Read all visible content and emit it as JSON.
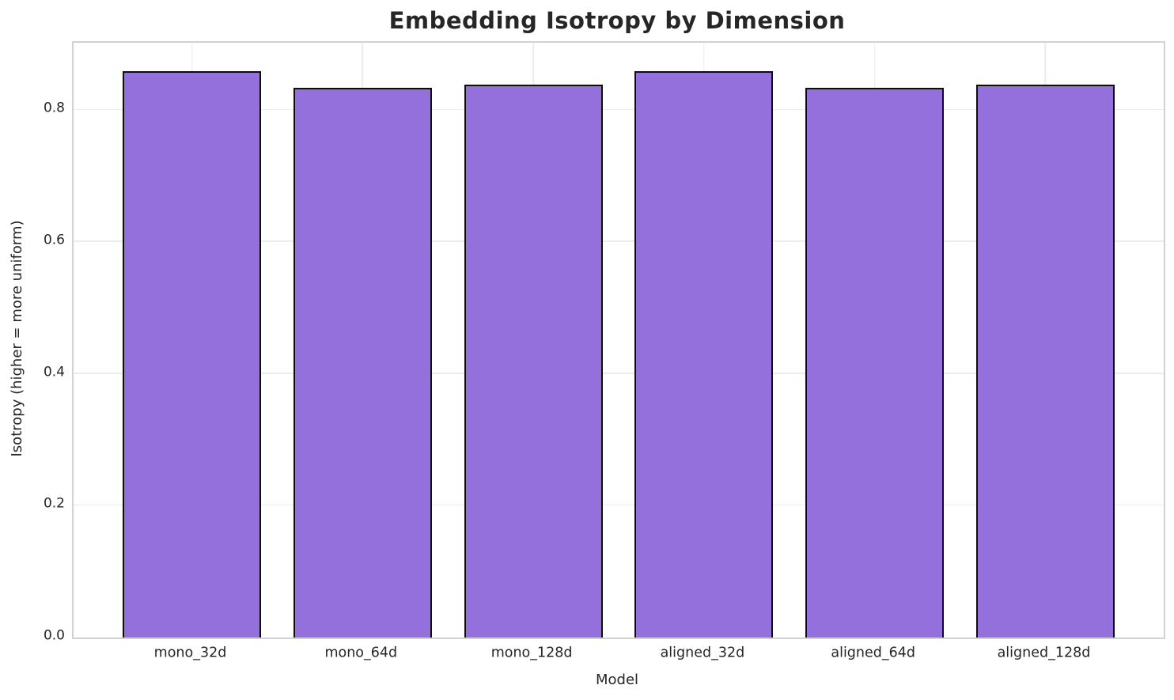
{
  "title": "Embedding Isotropy by Dimension",
  "chart_data": {
    "type": "bar",
    "title": "Embedding Isotropy by Dimension",
    "xlabel": "Model",
    "ylabel": "Isotropy (higher = more uniform)",
    "categories": [
      "mono_32d",
      "mono_64d",
      "mono_128d",
      "aligned_32d",
      "aligned_64d",
      "aligned_128d"
    ],
    "values": [
      0.859,
      0.834,
      0.838,
      0.859,
      0.834,
      0.838
    ],
    "ylim": [
      0,
      0.902
    ],
    "yticks": [
      0.0,
      0.2,
      0.4,
      0.6,
      0.8
    ],
    "ytick_labels": [
      "0.0",
      "0.2",
      "0.4",
      "0.6",
      "0.8"
    ],
    "grid": "on",
    "legend": "none",
    "bar_color": "#9370db",
    "bar_edge_color": "#0d0d0d",
    "grid_color": "#ececec",
    "spine_color": "#d2d2d2",
    "text_color": "#262626"
  }
}
